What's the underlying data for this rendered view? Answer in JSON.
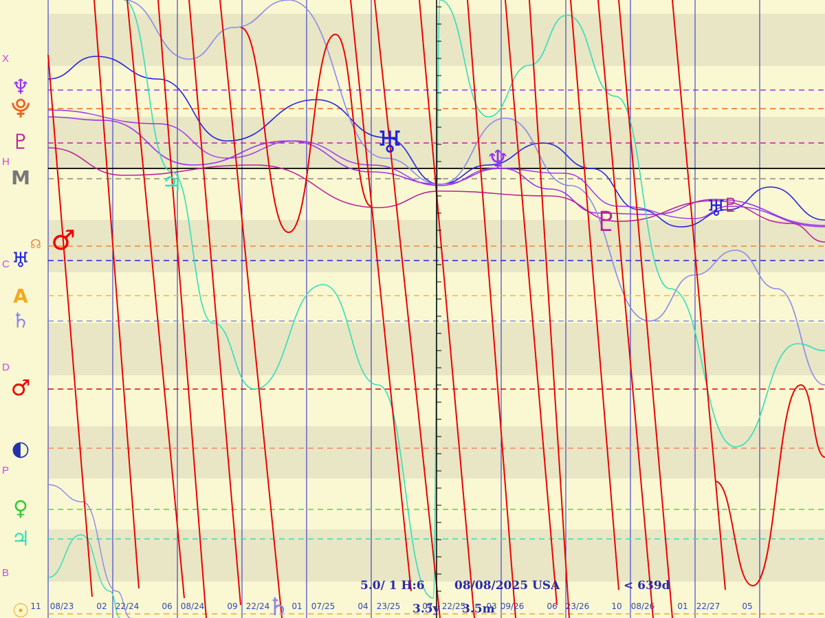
{
  "chart_data": {
    "type": "line",
    "info": {
      "left": "5.0/ 1 H:6",
      "center": "08/08/2025  USA",
      "right": "< 639d",
      "scale_left": "3.5y",
      "scale_right": "3.5m"
    },
    "date_labels": [
      "11",
      "08/23",
      "02",
      "22/24",
      "06",
      "08/24",
      "09",
      "22/24",
      "01",
      "07/25",
      "04",
      "23/25",
      "07",
      "22/25",
      "03",
      "09/26",
      "06",
      "23/26",
      "10",
      "08/26",
      "01",
      "22/27",
      "05"
    ],
    "side_letters": [
      {
        "text": "X",
        "color": "#cc44ee"
      },
      {
        "text": "H",
        "color": "#cc44ee"
      },
      {
        "text": "C",
        "color": "#cc44ee"
      },
      {
        "text": "D",
        "color": "#cc44ee"
      },
      {
        "text": "P",
        "color": "#cc44ee"
      },
      {
        "text": "B",
        "color": "#cc44ee"
      }
    ],
    "side_glyphs": [
      {
        "name": "neptune-icon",
        "glyph": "♆",
        "color": "#9933ee"
      },
      {
        "name": "pluto-icon",
        "glyph": "⯓",
        "color": "#ee6622"
      },
      {
        "name": "pluto-icon-alt",
        "glyph": "♇",
        "color": "#bb2299"
      },
      {
        "name": "mc-icon",
        "glyph": "M",
        "color": "#777777"
      },
      {
        "name": "node-icon",
        "glyph": "☊",
        "color": "#ee8833"
      },
      {
        "name": "mars-icon-top",
        "glyph": "♂",
        "color": "#ee0000"
      },
      {
        "name": "uranus-icon",
        "glyph": "♅",
        "color": "#2222dd"
      },
      {
        "name": "asc-icon",
        "glyph": "A",
        "color": "#eeaa22"
      },
      {
        "name": "saturn-icon",
        "glyph": "♄",
        "color": "#8888ee"
      },
      {
        "name": "mars-icon",
        "glyph": "♂",
        "color": "#ee0000"
      },
      {
        "name": "moon-phase-icon",
        "glyph": "◐",
        "color": "#2233aa"
      },
      {
        "name": "venus-icon",
        "glyph": "♀",
        "color": "#33cc33"
      },
      {
        "name": "jupiter-icon",
        "glyph": "♃",
        "color": "#33ddbb"
      },
      {
        "name": "sun-icon",
        "glyph": "☉",
        "color": "#eeaa22"
      }
    ],
    "reference_lines": [
      {
        "name": "neptune-ref",
        "color": "#9933ee",
        "dashed": true
      },
      {
        "name": "pluto-ref-orange",
        "color": "#ee6622",
        "dashed": true
      },
      {
        "name": "pluto-ref",
        "color": "#bb2299",
        "dashed": true
      },
      {
        "name": "horizon",
        "color": "#000000",
        "dashed": false
      },
      {
        "name": "mc-ref",
        "color": "#888888",
        "dashed": true
      },
      {
        "name": "node-ref",
        "color": "#ee8833",
        "dashed": true
      },
      {
        "name": "uranus-ref",
        "color": "#2222dd",
        "dashed": true
      },
      {
        "name": "asc-ref",
        "color": "#eebb33",
        "dashed": true
      },
      {
        "name": "saturn-ref",
        "color": "#8888ee",
        "dashed": true
      },
      {
        "name": "mars-ref",
        "color": "#dd0000",
        "dashed": true
      },
      {
        "name": "moon-ref",
        "color": "#ee8866",
        "dashed": true
      },
      {
        "name": "venus-ref",
        "color": "#44dd44",
        "dashed": true
      },
      {
        "name": "jupiter-ref",
        "color": "#33ddbb",
        "dashed": true
      },
      {
        "name": "sun-ref",
        "color": "#eeaa22",
        "dashed": true
      }
    ],
    "series": [
      {
        "key": "uranus",
        "color": "#2222dd"
      },
      {
        "key": "neptune",
        "color": "#9933ee"
      },
      {
        "key": "pluto",
        "color": "#bb2299"
      },
      {
        "key": "saturn",
        "color": "#8888ee"
      },
      {
        "key": "jupiter",
        "color": "#33ddbb"
      },
      {
        "key": "mars",
        "color": "#ee0000"
      }
    ],
    "curve_markers": [
      {
        "name": "uranus-marker",
        "glyph": "♅",
        "color": "#2222dd"
      },
      {
        "name": "neptune-marker",
        "glyph": "♆",
        "color": "#9933ee"
      },
      {
        "name": "pluto-marker",
        "glyph": "♇",
        "color": "#bb2299"
      },
      {
        "name": "uranus-marker-2",
        "glyph": "♅",
        "color": "#2222dd"
      },
      {
        "name": "pluto-marker-2",
        "glyph": "♇",
        "color": "#bb2299"
      },
      {
        "name": "jupiter-marker",
        "glyph": "♃",
        "color": "#33ddbb"
      },
      {
        "name": "saturn-marker",
        "glyph": "♄",
        "color": "#8888ee"
      }
    ],
    "colors": {
      "background": "#faf8d2",
      "band": "#e8e6c4",
      "grid": "#2222cc"
    }
  }
}
